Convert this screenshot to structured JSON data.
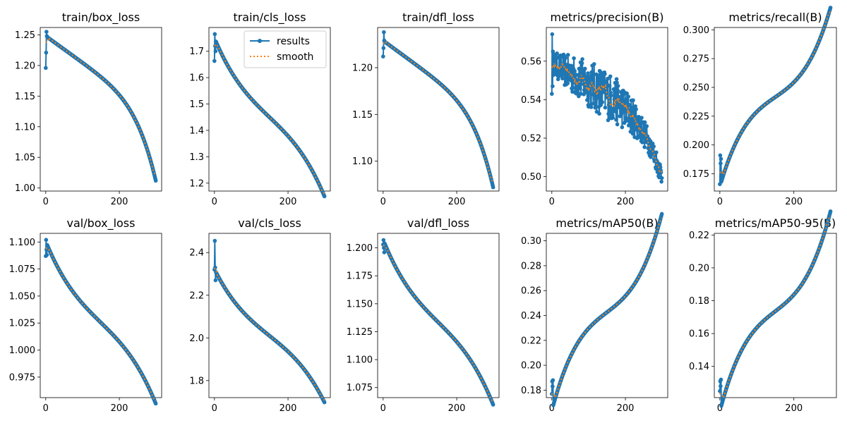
{
  "figure": {
    "legend": {
      "entries": [
        "results",
        "smooth"
      ],
      "placement": "upper-right of train/cls_loss"
    },
    "colors": {
      "results": "#1f77b4",
      "smooth": "#ff7f0e"
    }
  },
  "chart_data": [
    {
      "type": "line",
      "title": "train/box_loss",
      "x": [
        0,
        300
      ],
      "ylim": [
        0.995,
        1.262
      ],
      "yticks": [
        1.0,
        1.05,
        1.1,
        1.15,
        1.2,
        1.25
      ],
      "ytick_labels": [
        "1.00",
        "1.05",
        "1.10",
        "1.15",
        "1.20",
        "1.25"
      ],
      "xticks": [
        0,
        200
      ],
      "xtick_labels": [
        "0",
        "200"
      ],
      "curve": {
        "start": 1.248,
        "end": 1.012,
        "shape": "concave-down",
        "noise": 0.0
      },
      "initial_points": [
        1.196,
        1.221,
        1.255,
        1.248
      ],
      "series": [
        {
          "name": "results"
        },
        {
          "name": "smooth"
        }
      ]
    },
    {
      "type": "line",
      "title": "train/cls_loss",
      "x": [
        0,
        300
      ],
      "ylim": [
        1.17,
        1.79
      ],
      "yticks": [
        1.2,
        1.3,
        1.4,
        1.5,
        1.6,
        1.7
      ],
      "ytick_labels": [
        "1.2",
        "1.3",
        "1.4",
        "1.5",
        "1.6",
        "1.7"
      ],
      "xticks": [
        0,
        200
      ],
      "xtick_labels": [
        "0",
        "200"
      ],
      "curve": {
        "start": 1.7,
        "end": 1.2,
        "shape": "cubic",
        "noise": 0.0
      },
      "initial_points": [
        1.663,
        1.765,
        1.72,
        1.7
      ],
      "series": [
        {
          "name": "results"
        },
        {
          "name": "smooth"
        }
      ]
    },
    {
      "type": "line",
      "title": "train/dfl_loss",
      "x": [
        0,
        300
      ],
      "ylim": [
        1.068,
        1.243
      ],
      "yticks": [
        1.1,
        1.15,
        1.2
      ],
      "ytick_labels": [
        "1.10",
        "1.15",
        "1.20"
      ],
      "xticks": [
        0,
        200
      ],
      "xtick_labels": [
        "0",
        "200"
      ],
      "curve": {
        "start": 1.229,
        "end": 1.072,
        "shape": "concave-down",
        "noise": 0.0
      },
      "initial_points": [
        1.212,
        1.221,
        1.238,
        1.229
      ],
      "series": [
        {
          "name": "results"
        },
        {
          "name": "smooth"
        }
      ]
    },
    {
      "type": "line",
      "title": "metrics/precision(B)",
      "x": [
        0,
        300
      ],
      "ylim": [
        0.4925,
        0.5775
      ],
      "yticks": [
        0.5,
        0.52,
        0.54,
        0.56
      ],
      "ytick_labels": [
        "0.50",
        "0.52",
        "0.54",
        "0.56"
      ],
      "xticks": [
        0,
        200
      ],
      "xtick_labels": [
        "0",
        "200"
      ],
      "curve": {
        "start": 0.559,
        "end": 0.5,
        "shape": "concave-down",
        "noise": 0.008
      },
      "initial_points": [
        0.543,
        0.574,
        0.547,
        0.565
      ],
      "series": [
        {
          "name": "results"
        },
        {
          "name": "smooth"
        }
      ]
    },
    {
      "type": "line",
      "title": "metrics/recall(B)",
      "x": [
        0,
        300
      ],
      "ylim": [
        0.16,
        0.302
      ],
      "yticks": [
        0.175,
        0.2,
        0.225,
        0.25,
        0.275,
        0.3
      ],
      "ytick_labels": [
        "0.175",
        "0.200",
        "0.225",
        "0.250",
        "0.275",
        "0.300"
      ],
      "xticks": [
        0,
        200
      ],
      "xtick_labels": [
        "0",
        "200"
      ],
      "curve": {
        "start": 0.186,
        "end": 0.297,
        "shape": "cubic-rising",
        "noise": 0.0
      },
      "initial_points": [
        0.166,
        0.191,
        0.184,
        0.188
      ],
      "series": [
        {
          "name": "results"
        },
        {
          "name": "smooth"
        }
      ]
    },
    {
      "type": "line",
      "title": "val/box_loss",
      "x": [
        0,
        300
      ],
      "ylim": [
        0.956,
        1.108
      ],
      "yticks": [
        0.975,
        1.0,
        1.025,
        1.05,
        1.075,
        1.1
      ],
      "ytick_labels": [
        "0.975",
        "1.000",
        "1.025",
        "1.050",
        "1.075",
        "1.100"
      ],
      "xticks": [
        0,
        200
      ],
      "xtick_labels": [
        "0",
        "200"
      ],
      "curve": {
        "start": 1.088,
        "end": 0.963,
        "shape": "cubic",
        "noise": 0.0
      },
      "initial_points": [
        1.087,
        1.102,
        1.093,
        1.088
      ],
      "series": [
        {
          "name": "results"
        },
        {
          "name": "smooth"
        }
      ]
    },
    {
      "type": "line",
      "title": "val/cls_loss",
      "x": [
        0,
        300
      ],
      "ylim": [
        1.72,
        2.49
      ],
      "yticks": [
        1.8,
        2.0,
        2.2,
        2.4
      ],
      "ytick_labels": [
        "1.8",
        "2.0",
        "2.2",
        "2.4"
      ],
      "xticks": [
        0,
        200
      ],
      "xtick_labels": [
        "0",
        "200"
      ],
      "curve": {
        "start": 2.27,
        "end": 1.75,
        "shape": "cubic",
        "noise": 0.0
      },
      "initial_points": [
        2.32,
        2.455,
        2.33,
        2.27
      ],
      "series": [
        {
          "name": "results"
        },
        {
          "name": "smooth"
        }
      ]
    },
    {
      "type": "line",
      "title": "val/dfl_loss",
      "x": [
        0,
        300
      ],
      "ylim": [
        1.066,
        1.213
      ],
      "yticks": [
        1.075,
        1.1,
        1.125,
        1.15,
        1.175,
        1.2
      ],
      "ytick_labels": [
        "1.075",
        "1.100",
        "1.125",
        "1.150",
        "1.175",
        "1.200"
      ],
      "xticks": [
        0,
        200
      ],
      "xtick_labels": [
        "0",
        "200"
      ],
      "curve": {
        "start": 1.195,
        "end": 1.072,
        "shape": "cubic",
        "noise": 0.0
      },
      "initial_points": [
        1.203,
        1.207,
        1.2,
        1.196
      ],
      "series": [
        {
          "name": "results"
        },
        {
          "name": "smooth"
        }
      ]
    },
    {
      "type": "line",
      "title": "metrics/mAP50(B)",
      "x": [
        0,
        300
      ],
      "ylim": [
        0.174,
        0.306
      ],
      "yticks": [
        0.18,
        0.2,
        0.22,
        0.24,
        0.26,
        0.28,
        0.3
      ],
      "ytick_labels": [
        "0.18",
        "0.20",
        "0.22",
        "0.24",
        "0.26",
        "0.28",
        "0.30"
      ],
      "xticks": [
        0,
        200
      ],
      "xtick_labels": [
        "0",
        "200"
      ],
      "curve": {
        "start": 0.186,
        "end": 0.299,
        "shape": "cubic-rising",
        "noise": 0.0
      },
      "initial_points": [
        0.177,
        0.187,
        0.183,
        0.188
      ],
      "series": [
        {
          "name": "results"
        },
        {
          "name": "smooth"
        }
      ]
    },
    {
      "type": "line",
      "title": "metrics/mAP50-95(B)",
      "x": [
        0,
        300
      ],
      "ylim": [
        0.121,
        0.221
      ],
      "yticks": [
        0.14,
        0.16,
        0.18,
        0.2,
        0.22
      ],
      "ytick_labels": [
        "0.14",
        "0.16",
        "0.18",
        "0.20",
        "0.22"
      ],
      "xticks": [
        0,
        200
      ],
      "xtick_labels": [
        "0",
        "200"
      ],
      "curve": {
        "start": 0.13,
        "end": 0.217,
        "shape": "cubic-rising",
        "noise": 0.0
      },
      "initial_points": [
        0.125,
        0.131,
        0.128,
        0.132
      ],
      "series": [
        {
          "name": "results"
        },
        {
          "name": "smooth"
        }
      ]
    }
  ]
}
